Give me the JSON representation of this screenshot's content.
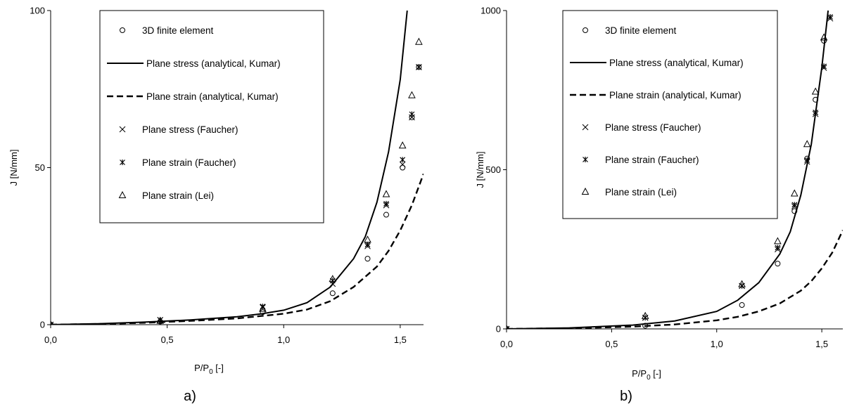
{
  "chart_data": [
    {
      "type": "scatter",
      "caption": "a)",
      "xlabel": "P/P",
      "xlabel_sub": "0",
      "xlabel_suffix": " [-]",
      "ylabel": "J [N/mm]",
      "xlim": [
        0,
        1.6
      ],
      "ylim": [
        0,
        100
      ],
      "x_ticks": [
        0,
        0.5,
        1.0,
        1.5
      ],
      "x_tick_labels": [
        "0,0",
        "0,5",
        "1,0",
        "1,5"
      ],
      "y_ticks": [
        0,
        50,
        100
      ],
      "y_tick_labels": [
        "0",
        "50",
        "100"
      ],
      "legend_position": "top-center",
      "series": [
        {
          "name": "3D finite element",
          "marker": "circle",
          "x": [
            0,
            0.47,
            0.91,
            1.21,
            1.36,
            1.44,
            1.51,
            1.55,
            1.58
          ],
          "y": [
            0,
            1,
            4,
            10,
            21,
            35,
            50,
            66,
            82
          ]
        },
        {
          "name": "Plane stress (analytical, Kumar)",
          "line": "solid",
          "x": [
            0,
            0.2,
            0.4,
            0.6,
            0.8,
            0.9,
            1.0,
            1.1,
            1.2,
            1.3,
            1.35,
            1.4,
            1.45,
            1.5,
            1.53
          ],
          "y": [
            0,
            0.3,
            0.8,
            1.5,
            2.5,
            3.4,
            4.6,
            7.0,
            12.0,
            21.0,
            28.0,
            39.0,
            55.0,
            78.0,
            100.0
          ]
        },
        {
          "name": "Plane strain (analytical, Kumar)",
          "line": "dashed",
          "x": [
            0,
            0.2,
            0.4,
            0.6,
            0.8,
            1.0,
            1.1,
            1.2,
            1.3,
            1.4,
            1.45,
            1.5,
            1.55,
            1.6
          ],
          "y": [
            0,
            0.2,
            0.6,
            1.2,
            2.0,
            3.5,
            4.8,
            7.5,
            12.0,
            18.5,
            23.5,
            30.0,
            38.0,
            48.0
          ]
        },
        {
          "name": "Plane stress (Faucher)",
          "marker": "x",
          "x": [
            0,
            0.47,
            0.91,
            1.21,
            1.36,
            1.44,
            1.51,
            1.55,
            1.58
          ],
          "y": [
            0,
            1.5,
            5.5,
            13,
            25,
            38,
            51,
            66,
            82
          ]
        },
        {
          "name": "Plane strain (Faucher)",
          "marker": "star",
          "x": [
            0,
            0.47,
            0.91,
            1.21,
            1.36,
            1.44,
            1.51,
            1.55,
            1.58
          ],
          "y": [
            0,
            1.5,
            5.8,
            14,
            25.5,
            38.5,
            52.5,
            67,
            82
          ]
        },
        {
          "name": "Plane strain (Lei)",
          "marker": "triangle",
          "x": [
            0,
            0.47,
            0.91,
            1.21,
            1.36,
            1.44,
            1.51,
            1.55,
            1.58
          ],
          "y": [
            0,
            1.2,
            5,
            14.5,
            27,
            41.5,
            57,
            73,
            90
          ]
        }
      ]
    },
    {
      "type": "scatter",
      "caption": "b)",
      "xlabel": "P/P",
      "xlabel_sub": "0",
      "xlabel_suffix": " [-]",
      "ylabel": "J [N/mm]",
      "xlim": [
        0,
        1.6
      ],
      "ylim": [
        0,
        1000
      ],
      "x_ticks": [
        0,
        0.5,
        1.0,
        1.5
      ],
      "x_tick_labels": [
        "0,0",
        "0,5",
        "1,0",
        "1,5"
      ],
      "y_ticks": [
        0,
        500,
        1000
      ],
      "y_tick_labels": [
        "0",
        "500",
        "1000"
      ],
      "legend_position": "top-center",
      "series": [
        {
          "name": "3D finite element",
          "marker": "circle",
          "x": [
            0,
            0.66,
            1.12,
            1.29,
            1.37,
            1.43,
            1.47,
            1.51
          ],
          "y": [
            0,
            10,
            75,
            205,
            370,
            535,
            720,
            905
          ]
        },
        {
          "name": "Plane stress (analytical, Kumar)",
          "line": "solid",
          "x": [
            0,
            0.3,
            0.6,
            0.8,
            1.0,
            1.1,
            1.2,
            1.3,
            1.35,
            1.4,
            1.45,
            1.5,
            1.53
          ],
          "y": [
            0,
            3,
            12,
            25,
            55,
            90,
            145,
            235,
            305,
            420,
            580,
            820,
            1000
          ]
        },
        {
          "name": "Plane strain (analytical, Kumar)",
          "line": "dashed",
          "x": [
            0,
            0.3,
            0.6,
            0.8,
            1.0,
            1.1,
            1.2,
            1.3,
            1.4,
            1.45,
            1.5,
            1.55,
            1.6
          ],
          "y": [
            0,
            2,
            7,
            14,
            27,
            38,
            55,
            80,
            120,
            150,
            190,
            240,
            310
          ]
        },
        {
          "name": "Plane stress (Faucher)",
          "marker": "x",
          "x": [
            0,
            0.66,
            1.12,
            1.29,
            1.37,
            1.43,
            1.47,
            1.51,
            1.54
          ],
          "y": [
            0,
            35,
            135,
            250,
            385,
            525,
            675,
            820,
            975
          ]
        },
        {
          "name": "Plane strain (Faucher)",
          "marker": "star",
          "x": [
            0,
            0.66,
            1.12,
            1.29,
            1.37,
            1.43,
            1.47,
            1.51,
            1.54
          ],
          "y": [
            0,
            35,
            135,
            255,
            390,
            530,
            680,
            825,
            980
          ]
        },
        {
          "name": "Plane strain (Lei)",
          "marker": "triangle",
          "x": [
            0,
            0.66,
            1.12,
            1.29,
            1.37,
            1.43,
            1.47,
            1.51
          ],
          "y": [
            0,
            40,
            140,
            275,
            425,
            580,
            745,
            915
          ]
        }
      ]
    }
  ]
}
